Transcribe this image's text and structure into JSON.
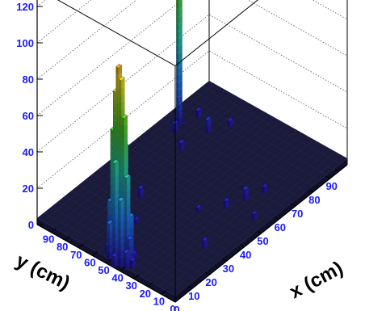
{
  "chart_data": {
    "type": "lego3d",
    "xlabel": "x (cm)",
    "ylabel": "y (cm)",
    "x_ticks": [
      "0",
      "10",
      "20",
      "30",
      "40",
      "50",
      "60",
      "70",
      "80",
      "90"
    ],
    "y_ticks": [
      "0",
      "10",
      "20",
      "30",
      "40",
      "50",
      "60",
      "70",
      "80",
      "90"
    ],
    "z_ticks": [
      "0",
      "20",
      "40",
      "60",
      "80",
      "100",
      "120"
    ],
    "xlim": [
      0,
      100
    ],
    "ylim": [
      0,
      100
    ],
    "zlim": [
      0,
      130
    ],
    "bins_per_axis": 50,
    "grid": true,
    "base_color": "#1a1a3a",
    "bars": [
      {
        "x": 5,
        "y": 47,
        "z": 106
      },
      {
        "x": 5,
        "y": 45,
        "z": 100
      },
      {
        "x": 5,
        "y": 49,
        "z": 92
      },
      {
        "x": 5,
        "y": 43,
        "z": 80
      },
      {
        "x": 5,
        "y": 51,
        "z": 70
      },
      {
        "x": 7,
        "y": 45,
        "z": 62
      },
      {
        "x": 3,
        "y": 47,
        "z": 55
      },
      {
        "x": 5,
        "y": 41,
        "z": 48
      },
      {
        "x": 7,
        "y": 49,
        "z": 42
      },
      {
        "x": 3,
        "y": 43,
        "z": 36
      },
      {
        "x": 5,
        "y": 53,
        "z": 30
      },
      {
        "x": 7,
        "y": 41,
        "z": 25
      },
      {
        "x": 3,
        "y": 51,
        "z": 20
      },
      {
        "x": 5,
        "y": 39,
        "z": 15
      },
      {
        "x": 7,
        "y": 53,
        "z": 12
      },
      {
        "x": 3,
        "y": 39,
        "z": 9
      },
      {
        "x": 9,
        "y": 47,
        "z": 7
      },
      {
        "x": 1,
        "y": 45,
        "z": 6
      },
      {
        "x": 5,
        "y": 55,
        "z": 5
      },
      {
        "x": 5,
        "y": 37,
        "z": 4
      },
      {
        "x": 11,
        "y": 45,
        "z": 3
      },
      {
        "x": 9,
        "y": 41,
        "z": 3
      },
      {
        "x": 77,
        "y": 93,
        "z": 72
      },
      {
        "x": 81,
        "y": 77,
        "z": 7
      },
      {
        "x": 73,
        "y": 91,
        "z": 5
      },
      {
        "x": 85,
        "y": 89,
        "z": 4
      },
      {
        "x": 67,
        "y": 79,
        "z": 4
      },
      {
        "x": 37,
        "y": 71,
        "z": 5
      },
      {
        "x": 31,
        "y": 17,
        "z": 4
      },
      {
        "x": 61,
        "y": 25,
        "z": 6
      },
      {
        "x": 53,
        "y": 29,
        "z": 4
      },
      {
        "x": 55,
        "y": 11,
        "z": 3
      },
      {
        "x": 69,
        "y": 21,
        "z": 3
      },
      {
        "x": 45,
        "y": 39,
        "z": 2
      },
      {
        "x": 89,
        "y": 71,
        "z": 3
      },
      {
        "x": 25,
        "y": 59,
        "z": 2
      }
    ]
  }
}
